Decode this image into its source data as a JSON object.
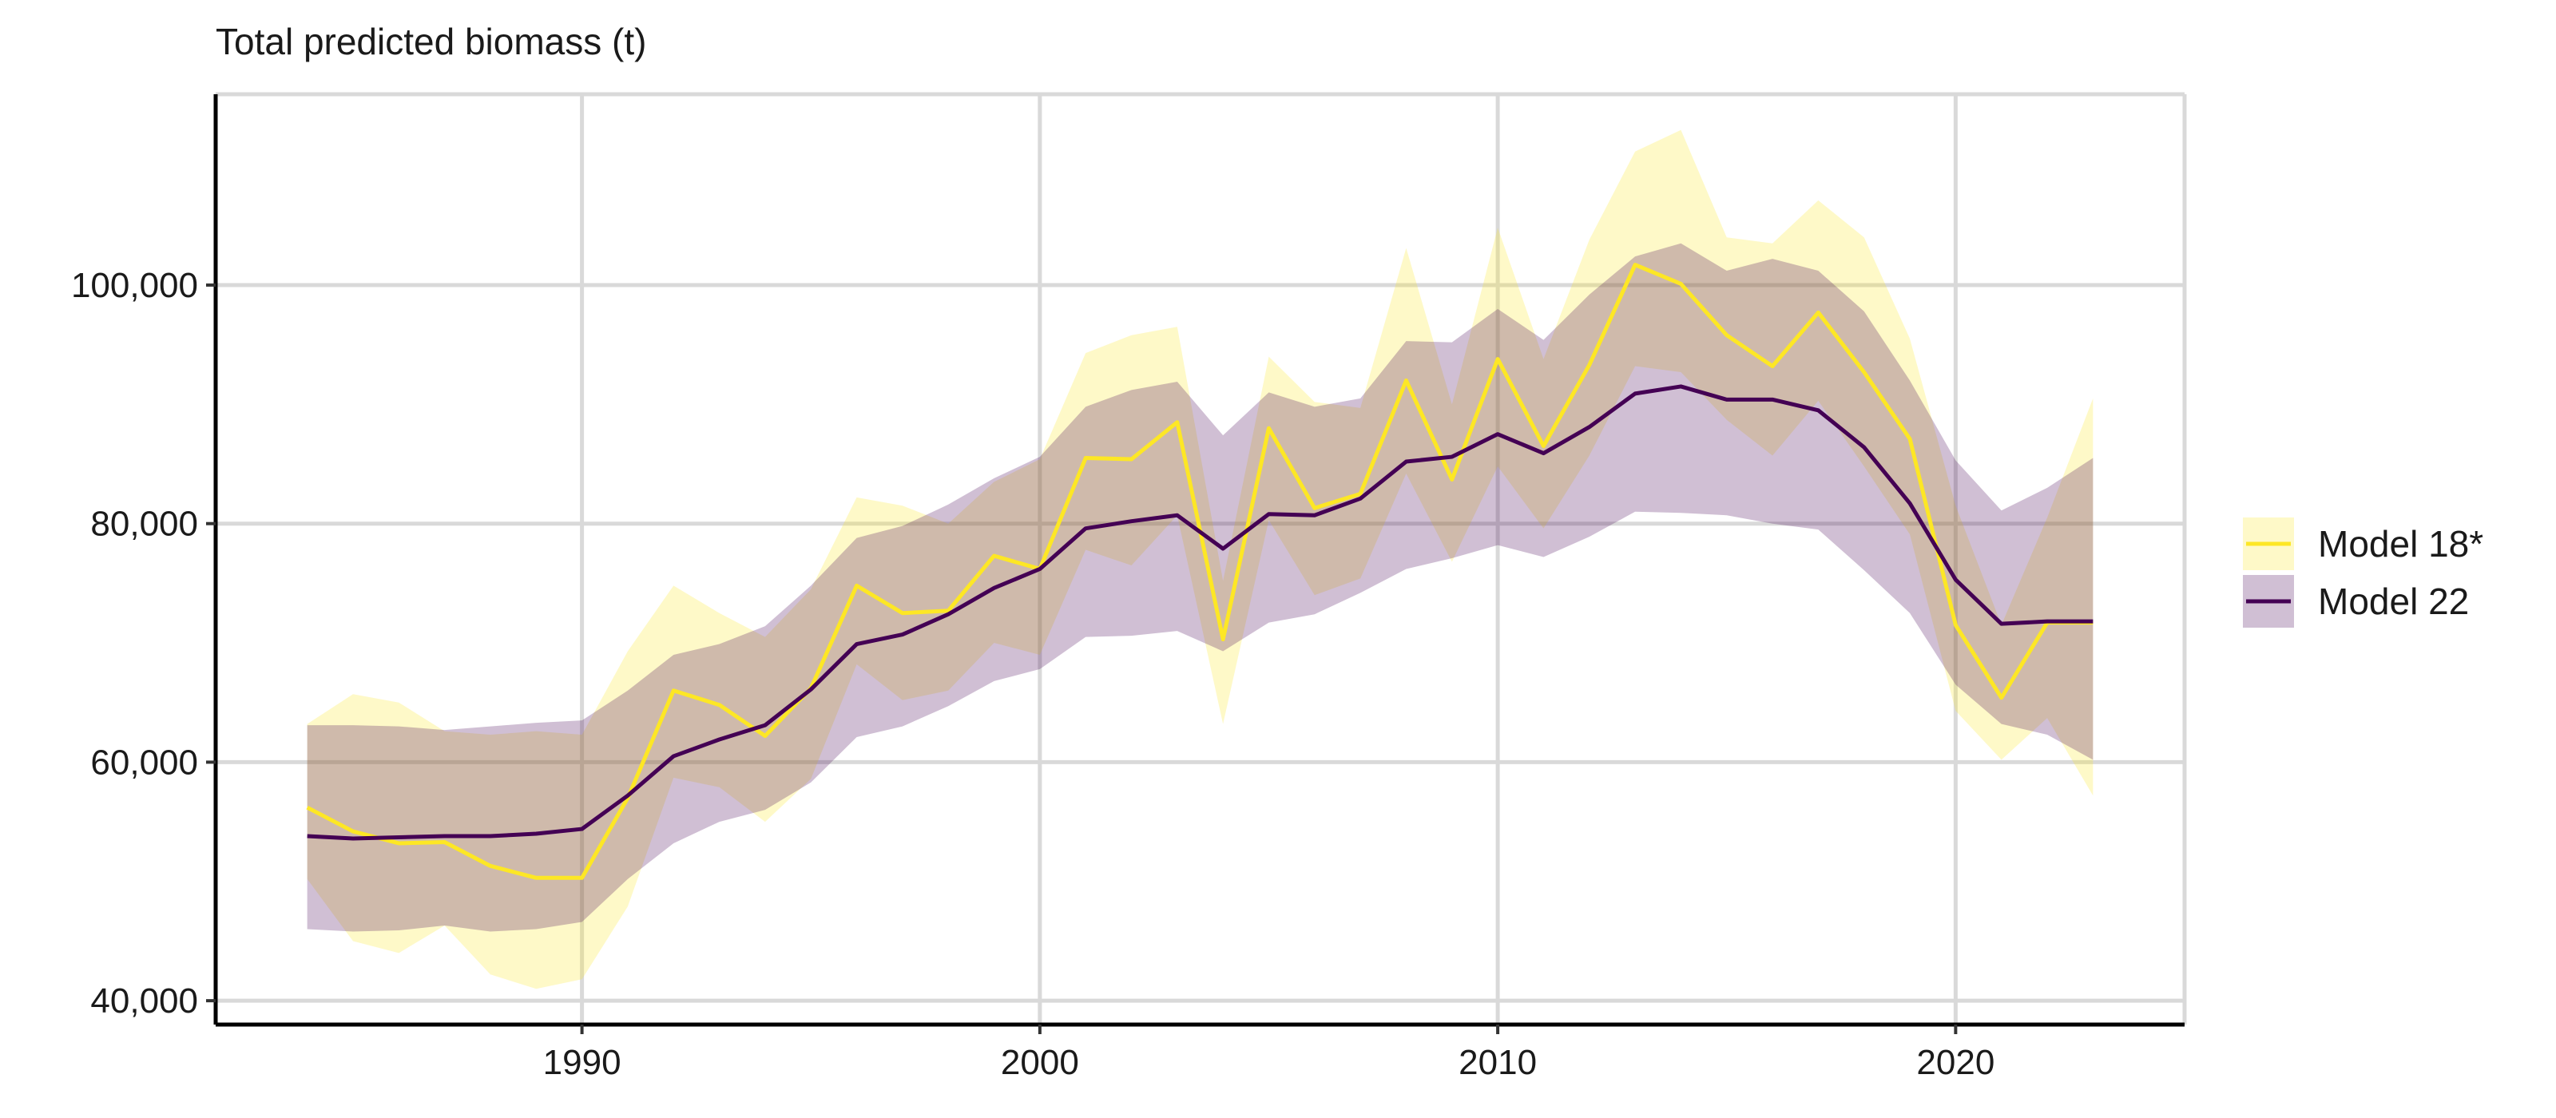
{
  "chart_data": {
    "type": "line",
    "title": "Total predicted biomass (t)",
    "xlabel": "",
    "ylabel": "",
    "xlim": [
      1982,
      2025
    ],
    "ylim": [
      38000,
      116000
    ],
    "x_ticks": [
      1990,
      2000,
      2010,
      2020
    ],
    "y_ticks": [
      40000,
      60000,
      80000,
      100000
    ],
    "y_tick_labels": [
      "40,000",
      "60,000",
      "80,000",
      "100,000"
    ],
    "grid": true,
    "legend_position": "right",
    "x": [
      1984,
      1985,
      1986,
      1987,
      1988,
      1989,
      1990,
      1991,
      1992,
      1993,
      1994,
      1995,
      1996,
      1997,
      1998,
      1999,
      2000,
      2001,
      2002,
      2003,
      2004,
      2005,
      2006,
      2007,
      2008,
      2009,
      2010,
      2011,
      2012,
      2013,
      2014,
      2015,
      2016,
      2017,
      2018,
      2019,
      2020,
      2021,
      2022,
      2023
    ],
    "series": [
      {
        "name": "Model 18*",
        "line_color": "#FDE725",
        "fill_color": "#FDE725",
        "fill_opacity": 0.25,
        "values": [
          56200,
          54200,
          53200,
          53300,
          51300,
          50300,
          50300,
          57000,
          66000,
          64800,
          62200,
          66200,
          74800,
          72500,
          72700,
          77300,
          76200,
          85500,
          85400,
          88500,
          70300,
          88000,
          81300,
          82500,
          92000,
          83700,
          93800,
          86500,
          93300,
          101700,
          100100,
          95800,
          93200,
          97700,
          92700,
          87100,
          71500,
          65400,
          71700,
          71700
        ],
        "lower": [
          50200,
          45000,
          44000,
          46300,
          42200,
          41000,
          41800,
          47900,
          58700,
          57900,
          55000,
          58600,
          68200,
          65200,
          66000,
          70000,
          69000,
          77800,
          76500,
          80700,
          63200,
          80300,
          74000,
          75400,
          84200,
          76800,
          84800,
          79600,
          85700,
          93200,
          92700,
          88700,
          85700,
          90300,
          84800,
          79100,
          64300,
          60200,
          63700,
          57200
        ],
        "upper": [
          63200,
          65700,
          65000,
          62600,
          62300,
          62600,
          62300,
          69300,
          74800,
          72500,
          70500,
          74500,
          82200,
          81500,
          80000,
          83500,
          85400,
          94300,
          95800,
          96500,
          75200,
          94000,
          90200,
          89700,
          103100,
          90000,
          104800,
          93800,
          103800,
          111200,
          113000,
          104000,
          103500,
          107100,
          104000,
          95500,
          81500,
          71500,
          80500,
          90500
        ]
      },
      {
        "name": "Model 22",
        "line_color": "#440154",
        "fill_color": "#440154",
        "fill_opacity": 0.25,
        "values": [
          53800,
          53600,
          53700,
          53800,
          53800,
          54000,
          54400,
          57200,
          60500,
          61900,
          63100,
          66100,
          69900,
          70700,
          72400,
          74600,
          76200,
          79600,
          80200,
          80700,
          77900,
          80800,
          80700,
          82100,
          85200,
          85600,
          87500,
          85900,
          88100,
          90900,
          91500,
          90400,
          90400,
          89500,
          86400,
          81700,
          75300,
          71600,
          71800,
          71800
        ],
        "lower": [
          46000,
          45800,
          45900,
          46300,
          45800,
          46000,
          46600,
          50200,
          53200,
          55000,
          56000,
          58300,
          62100,
          63000,
          64700,
          66800,
          67800,
          70500,
          70600,
          71000,
          69300,
          71700,
          72400,
          74200,
          76200,
          77100,
          78200,
          77200,
          78900,
          81000,
          80900,
          80700,
          80000,
          79500,
          76100,
          72500,
          66500,
          63200,
          62300,
          60200
        ],
        "upper": [
          63100,
          63100,
          63000,
          62700,
          63000,
          63300,
          63500,
          66000,
          69000,
          69900,
          71400,
          74800,
          78800,
          79800,
          81600,
          83800,
          85600,
          89800,
          91200,
          91900,
          87400,
          91000,
          89800,
          90500,
          95300,
          95200,
          98000,
          95400,
          99200,
          102400,
          103500,
          101200,
          102200,
          101200,
          97800,
          92000,
          85300,
          81100,
          83000,
          85500
        ]
      }
    ]
  }
}
